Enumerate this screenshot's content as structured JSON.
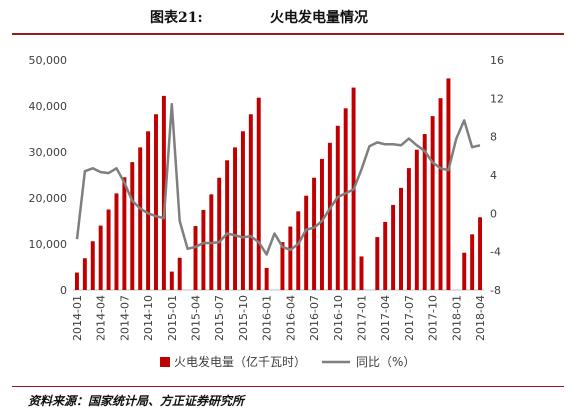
{
  "figure": {
    "number": "图表21:",
    "title": "火电发电量情况",
    "source": "资料来源：国家统计局、方正证券研究所"
  },
  "colors": {
    "bar": "#c00000",
    "line": "#7f7f7f",
    "accent": "#9b1b1b"
  },
  "chart_data": {
    "type": "bar",
    "title": "火电发电量情况",
    "categories": [
      "2014-01",
      "2014-02",
      "2014-03",
      "2014-04",
      "2014-05",
      "2014-06",
      "2014-07",
      "2014-08",
      "2014-09",
      "2014-10",
      "2014-11",
      "2014-12",
      "2015-01",
      "2015-02",
      "2015-03",
      "2015-04",
      "2015-05",
      "2015-06",
      "2015-07",
      "2015-08",
      "2015-09",
      "2015-10",
      "2015-11",
      "2015-12",
      "2016-01",
      "2016-02",
      "2016-03",
      "2016-04",
      "2016-05",
      "2016-06",
      "2016-07",
      "2016-08",
      "2016-09",
      "2016-10",
      "2016-11",
      "2016-12",
      "2017-01",
      "2017-02",
      "2017-03",
      "2017-04",
      "2017-05",
      "2017-06",
      "2017-07",
      "2017-08",
      "2017-09",
      "2017-10",
      "2017-11",
      "2017-12",
      "2018-01",
      "2018-02",
      "2018-03",
      "2018-04"
    ],
    "xtick_labels": [
      "2014-01",
      "2014-04",
      "2014-07",
      "2014-10",
      "2015-01",
      "2015-04",
      "2015-07",
      "2015-10",
      "2016-01",
      "2016-04",
      "2016-07",
      "2016-10",
      "2017-01",
      "2017-04",
      "2017-07",
      "2017-10",
      "2018-01",
      "2018-04"
    ],
    "series": [
      {
        "name": "火电发电量（亿千瓦时）",
        "type": "bar",
        "axis": "left",
        "values": [
          3800,
          6900,
          10600,
          14000,
          17500,
          21000,
          24500,
          27800,
          31000,
          34500,
          38200,
          42200,
          4000,
          7000,
          null,
          13900,
          17400,
          20800,
          24400,
          28200,
          31000,
          34500,
          38200,
          41800,
          4800,
          null,
          10400,
          13800,
          17100,
          20500,
          24400,
          28500,
          32000,
          35700,
          39500,
          44000,
          7300,
          null,
          11500,
          14800,
          18500,
          22200,
          26500,
          30500,
          33900,
          37800,
          41700,
          46000,
          null,
          8100,
          12100,
          15800
        ]
      },
      {
        "name": "同比（%）",
        "type": "line",
        "axis": "right",
        "values": [
          -2.7,
          4.4,
          4.7,
          4.3,
          4.2,
          4.7,
          3.2,
          1.3,
          0.5,
          0,
          -0.3,
          -0.5,
          11.4,
          -0.8,
          -3.7,
          -3.5,
          -3.1,
          -3.1,
          -3,
          -2.1,
          -2.3,
          -2.5,
          -2.4,
          -3,
          -4.3,
          -2.1,
          -3.5,
          -3.8,
          -3.2,
          -1.7,
          -1.5,
          -0.8,
          0.5,
          1.7,
          2.1,
          2.5,
          4.6,
          7,
          7.4,
          7.2,
          7.2,
          7.1,
          7.8,
          7.1,
          6.5,
          5.3,
          4.7,
          4.5,
          7.8,
          9.7,
          6.9,
          7.1
        ]
      }
    ],
    "y_left": {
      "min": 0,
      "max": 50000,
      "ticks": [
        "0",
        "10,000",
        "20,000",
        "30,000",
        "40,000",
        "50,000"
      ],
      "tick_values": [
        0,
        10000,
        20000,
        30000,
        40000,
        50000
      ]
    },
    "y_right": {
      "min": -8,
      "max": 16,
      "ticks": [
        "-8",
        "-4",
        "0",
        "4",
        "8",
        "12",
        "16"
      ],
      "tick_values": [
        -8,
        -4,
        0,
        4,
        8,
        12,
        16
      ]
    },
    "legend": [
      "火电发电量（亿千瓦时）",
      "同比（%）"
    ],
    "legend_position": "bottom",
    "grid": false
  }
}
